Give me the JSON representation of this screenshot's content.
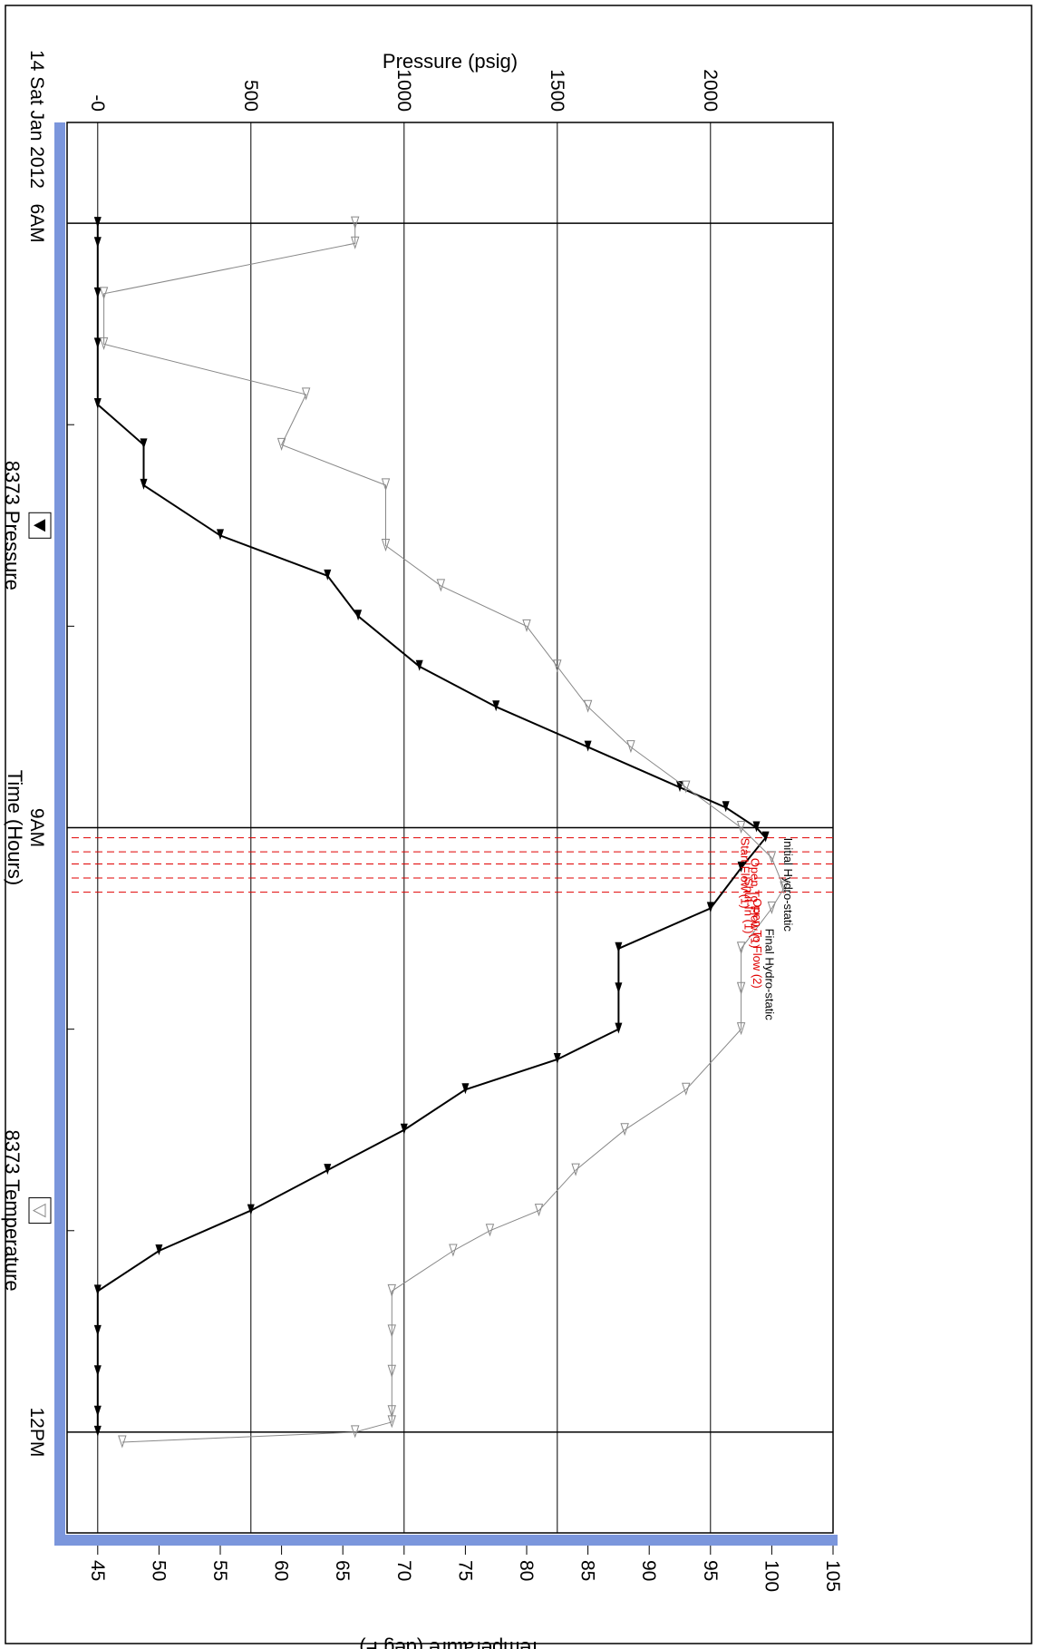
{
  "chart_data": {
    "type": "line",
    "orientation": "rotated-90-clockwise",
    "title": "",
    "xlabel": "Time (Hours)",
    "date_label": "14 Sat Jan 2012",
    "time_ticks": [
      {
        "label": "6AM",
        "hours": 6
      },
      {
        "label": "9AM",
        "hours": 9
      },
      {
        "label": "12PM",
        "hours": 12
      }
    ],
    "xlim_hours": [
      5.5,
      12.5
    ],
    "y_left": {
      "label": "Pressure (psig)",
      "ticks": [
        "-0",
        "500",
        "1000",
        "1500",
        "2000"
      ],
      "lim": [
        -100,
        2400
      ]
    },
    "y_right": {
      "label": "Temperature (deg F)",
      "ticks": [
        "45",
        "50",
        "55",
        "60",
        "65",
        "70",
        "75",
        "80",
        "85",
        "90",
        "95",
        "100",
        "105"
      ],
      "lim": [
        42.5,
        105
      ]
    },
    "grid": true,
    "legend": [
      {
        "name": "8373 Pressure",
        "symbol": "filled-triangle",
        "color": "#000000"
      },
      {
        "name": "8373 Temperature",
        "symbol": "open-triangle",
        "color": "#888888"
      }
    ],
    "series": [
      {
        "name": "8373 Pressure",
        "axis": "left",
        "color": "#000000",
        "x_hours": [
          6.0,
          6.1,
          6.35,
          6.6,
          6.9,
          7.1,
          7.3,
          7.55,
          7.75,
          7.95,
          8.2,
          8.4,
          8.6,
          8.8,
          8.9,
          9.0,
          9.05,
          9.2,
          9.4,
          9.6,
          9.8,
          10.0,
          10.15,
          10.3,
          10.5,
          10.7,
          10.9,
          11.1,
          11.3,
          11.5,
          11.7,
          11.9,
          12.0
        ],
        "y": [
          0,
          0,
          0,
          0,
          0,
          150,
          150,
          400,
          750,
          850,
          1050,
          1300,
          1600,
          1900,
          2050,
          2150,
          2180,
          2100,
          2000,
          1700,
          1700,
          1700,
          1500,
          1200,
          1000,
          750,
          500,
          200,
          0,
          0,
          0,
          0,
          0
        ]
      },
      {
        "name": "8373 Temperature",
        "axis": "right",
        "color": "#888888",
        "x_hours": [
          6.0,
          6.1,
          6.35,
          6.6,
          6.85,
          7.1,
          7.3,
          7.6,
          7.8,
          8.0,
          8.2,
          8.4,
          8.6,
          8.8,
          9.0,
          9.15,
          9.3,
          9.4,
          9.6,
          9.8,
          10.0,
          10.3,
          10.5,
          10.7,
          10.9,
          11.0,
          11.1,
          11.3,
          11.5,
          11.7,
          11.9,
          11.95,
          12.0,
          12.05
        ],
        "y": [
          66,
          66,
          45.5,
          45.5,
          62,
          60,
          68.5,
          68.5,
          73,
          80,
          82.5,
          85,
          88.5,
          93,
          97.5,
          100,
          101,
          100,
          97.5,
          97.5,
          97.5,
          93,
          88,
          84,
          81,
          77,
          74,
          69,
          69,
          69,
          69,
          69,
          66,
          47
        ]
      }
    ],
    "annotations": [
      {
        "text": "Initial Hydro-static",
        "color": "#000000",
        "x_hours": 9.05,
        "y_temp": 101
      },
      {
        "text": "Final Hydro-static",
        "color": "#000000",
        "x_hours": 9.5,
        "y_temp": 99.5
      },
      {
        "text": "Start Flow (1)",
        "color": "#e00000",
        "x_hours": 9.05,
        "y_temp": 97.5
      },
      {
        "text": "Open To Flow (1)",
        "color": "#e00000",
        "x_hours": 9.15,
        "y_temp": 98.3
      },
      {
        "text": "Shut-In (1)",
        "color": "#e00000",
        "x_hours": 9.25,
        "y_temp": 97.8
      },
      {
        "text": "Open To Flow (2)",
        "color": "#e00000",
        "x_hours": 9.35,
        "y_temp": 98.5
      }
    ],
    "event_lines_hours": [
      9.05,
      9.12,
      9.18,
      9.25,
      9.32
    ],
    "event_line_color": "#e00000"
  }
}
